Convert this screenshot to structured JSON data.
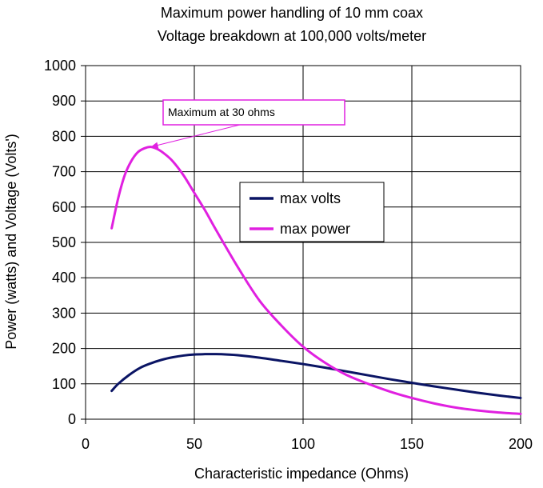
{
  "chart_data": {
    "type": "line",
    "title": "Maximum power handling of 10 mm coax",
    "subtitle": "Voltage breakdown at 100,000 volts/meter",
    "xlabel": "Characteristic impedance (Ohms)",
    "ylabel": "Power (watts) and Voltage (Volts')",
    "xlim": [
      0,
      200
    ],
    "ylim": [
      0,
      1000
    ],
    "x_ticks": [
      "0",
      "50",
      "100",
      "150",
      "200"
    ],
    "y_ticks": [
      "0",
      "100",
      "200",
      "300",
      "400",
      "500",
      "600",
      "700",
      "800",
      "900",
      "1000"
    ],
    "grid": true,
    "legend_position": "center",
    "series": [
      {
        "name": "max volts",
        "color": "#0a1464",
        "x": [
          12,
          15,
          20,
          25,
          30,
          35,
          40,
          45,
          50,
          55,
          60,
          65,
          70,
          80,
          90,
          100,
          110,
          120,
          130,
          140,
          150,
          160,
          170,
          180,
          190,
          200
        ],
        "y": [
          80,
          100,
          125,
          145,
          158,
          168,
          175,
          180,
          183,
          184,
          184,
          183,
          181,
          174,
          165,
          156,
          146,
          135,
          124,
          113,
          103,
          93,
          84,
          75,
          67,
          60
        ]
      },
      {
        "name": "max power",
        "color": "#e020e0",
        "x": [
          12,
          15,
          18,
          21,
          24,
          27,
          30,
          33,
          36,
          40,
          45,
          50,
          55,
          60,
          70,
          80,
          90,
          100,
          110,
          120,
          130,
          140,
          150,
          160,
          170,
          180,
          190,
          200
        ],
        "y": [
          540,
          625,
          690,
          730,
          755,
          766,
          770,
          764,
          752,
          730,
          690,
          640,
          590,
          535,
          430,
          335,
          265,
          205,
          160,
          125,
          100,
          78,
          60,
          45,
          33,
          25,
          19,
          15
        ]
      }
    ],
    "annotation": {
      "text": "Maximum at 30 ohms",
      "target_x": 30,
      "target_y": 770,
      "color": "#e020e0"
    }
  }
}
